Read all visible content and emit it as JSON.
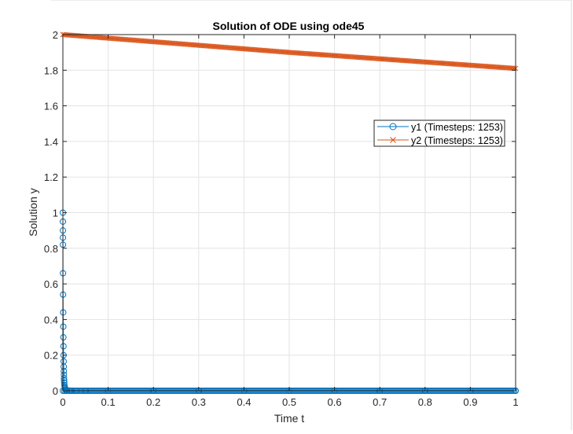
{
  "chart_data": {
    "type": "line",
    "title": "Solution of ODE using ode45",
    "xlabel": "Time t",
    "ylabel": "Solution y",
    "xlim": [
      0,
      1
    ],
    "ylim": [
      0,
      2
    ],
    "xticks": [
      0,
      0.1,
      0.2,
      0.3,
      0.4,
      0.5,
      0.6,
      0.7,
      0.8,
      0.9,
      1
    ],
    "xtick_labels": [
      "0",
      "0.1",
      "0.2",
      "0.3",
      "0.4",
      "0.5",
      "0.6",
      "0.7",
      "0.8",
      "0.9",
      "1"
    ],
    "yticks": [
      0,
      0.2,
      0.4,
      0.6,
      0.8,
      1,
      1.2,
      1.4,
      1.6,
      1.8,
      2
    ],
    "ytick_labels": [
      "0",
      "0.2",
      "0.4",
      "0.6",
      "0.8",
      "1",
      "1.2",
      "1.4",
      "1.6",
      "1.8",
      "2"
    ],
    "grid": true,
    "legend_position": "upper-right",
    "series": [
      {
        "name": "y1 (Timesteps: 1253)",
        "color": "#0072BD",
        "marker": "circle",
        "x": [
          0,
          5e-05,
          0.0001,
          0.00015,
          0.0002,
          0.0003,
          0.0005,
          0.0007,
          0.0009,
          0.0011,
          0.0013,
          0.0015,
          0.0017,
          0.0019,
          0.0021,
          0.0023,
          0.0025,
          0.0027,
          0.003,
          0.0034,
          0.004,
          0.0048,
          0.006,
          0.008,
          0.01,
          0.015,
          0.02,
          0.03,
          0.05,
          0.1,
          0.2,
          0.3,
          0.4,
          0.5,
          0.6,
          0.7,
          0.8,
          0.9,
          1
        ],
        "y": [
          1,
          0.95,
          0.9,
          0.86,
          0.82,
          0.66,
          0.54,
          0.44,
          0.36,
          0.3,
          0.25,
          0.2,
          0.165,
          0.135,
          0.11,
          0.09,
          0.072,
          0.058,
          0.045,
          0.032,
          0.022,
          0.014,
          0.008,
          0.004,
          0.002,
          0.001,
          0.0005,
          0,
          0,
          0,
          0,
          0,
          0,
          0,
          0,
          0,
          0,
          0,
          0
        ]
      },
      {
        "name": "y2 (Timesteps: 1253)",
        "color": "#D95319",
        "marker": "x",
        "x": [
          0,
          0.1,
          0.2,
          0.3,
          0.4,
          0.5,
          0.6,
          0.7,
          0.8,
          0.9,
          1
        ],
        "y": [
          2,
          1.98,
          1.96,
          1.94,
          1.92,
          1.9,
          1.882,
          1.864,
          1.846,
          1.828,
          1.81
        ]
      }
    ]
  }
}
